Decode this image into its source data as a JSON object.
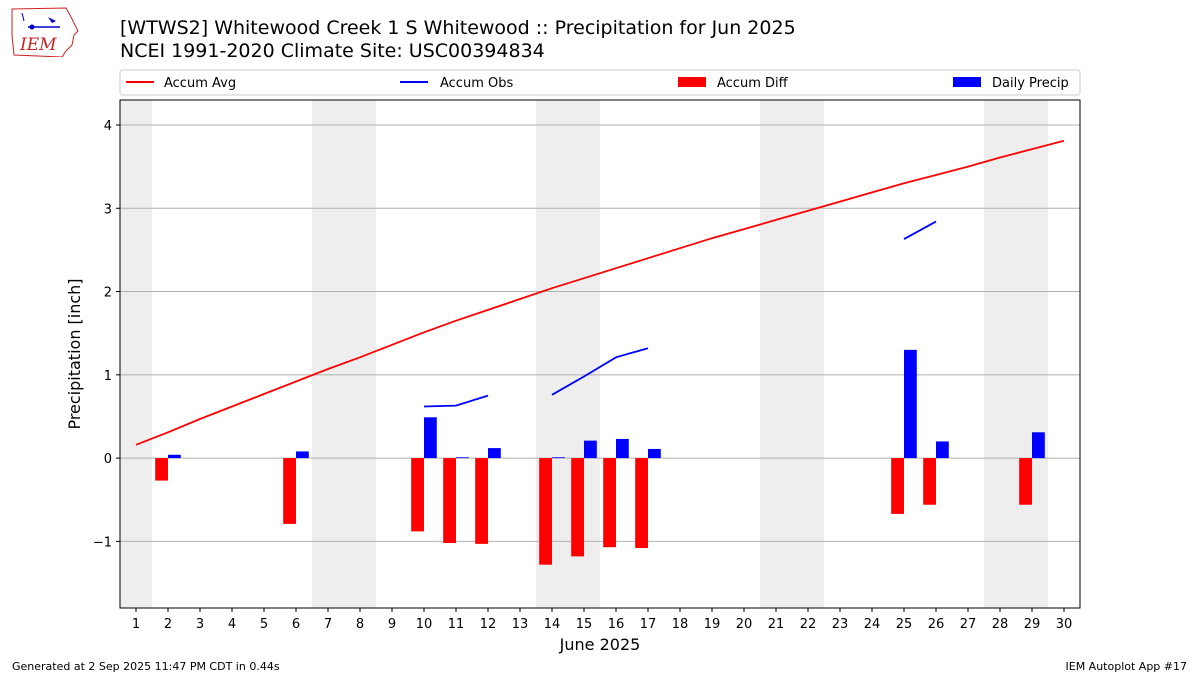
{
  "header": {
    "title_line1": "[WTWS2] Whitewood Creek 1 S Whitewood :: Precipitation for Jun 2025",
    "title_line2": "NCEI 1991-2020 Climate Site: USC00394834"
  },
  "logo": {
    "text": "IEM",
    "color": "#cc2222",
    "icon": "iem-iowa-logo"
  },
  "footer": {
    "left": "Generated at 2 Sep 2025 11:47 PM CDT in 0.44s",
    "right": "IEM Autoplot App #17"
  },
  "chart_data": {
    "type": "bar",
    "xlabel": "June 2025",
    "ylabel": "Precipitation [inch]",
    "x_ticks": [
      1,
      2,
      3,
      4,
      5,
      6,
      7,
      8,
      9,
      10,
      11,
      12,
      13,
      14,
      15,
      16,
      17,
      18,
      19,
      20,
      21,
      22,
      23,
      24,
      25,
      26,
      27,
      28,
      29,
      30
    ],
    "xlim": [
      0.5,
      30.5
    ],
    "ylim": [
      -1.8,
      4.3
    ],
    "y_ticks": [
      -1,
      0,
      1,
      2,
      3,
      4
    ],
    "y_tick_labels": [
      "−1",
      "0",
      "1",
      "2",
      "3",
      "4"
    ],
    "grid": "horizontal",
    "weekend_days": [
      1,
      7,
      8,
      14,
      15,
      21,
      22,
      28,
      29
    ],
    "weekend_color": "#eeeeee",
    "legend": [
      {
        "label": "Accum Avg",
        "type": "line",
        "color": "#ff0000"
      },
      {
        "label": "Accum Obs",
        "type": "line",
        "color": "#0000ff"
      },
      {
        "label": "Accum Diff",
        "type": "bar",
        "color": "#ff0000"
      },
      {
        "label": "Daily Precip",
        "type": "bar",
        "color": "#0000ff"
      }
    ],
    "legend_position": "top",
    "series": [
      {
        "name": "Accum Avg",
        "type": "line",
        "color": "#ff0000",
        "x": [
          1,
          2,
          3,
          4,
          5,
          6,
          7,
          8,
          9,
          10,
          11,
          12,
          13,
          14,
          15,
          16,
          17,
          18,
          19,
          20,
          21,
          22,
          23,
          24,
          25,
          26,
          27,
          28,
          29,
          30
        ],
        "values": [
          0.16,
          0.31,
          0.47,
          0.62,
          0.77,
          0.92,
          1.07,
          1.21,
          1.36,
          1.51,
          1.65,
          1.78,
          1.91,
          2.04,
          2.16,
          2.28,
          2.4,
          2.52,
          2.64,
          2.75,
          2.86,
          2.97,
          3.08,
          3.19,
          3.3,
          3.4,
          3.5,
          3.61,
          3.71,
          3.81
        ]
      },
      {
        "name": "Accum Obs",
        "type": "line",
        "color": "#0000ff",
        "x": [
          1,
          2,
          3,
          4,
          5,
          6,
          7,
          8,
          9,
          10,
          11,
          12,
          13,
          14,
          15,
          16,
          17,
          18,
          19,
          20,
          21,
          22,
          23,
          24,
          25,
          26,
          27,
          28,
          29,
          30
        ],
        "values": [
          null,
          null,
          null,
          null,
          null,
          null,
          null,
          null,
          null,
          0.62,
          0.63,
          0.75,
          null,
          0.76,
          0.98,
          1.21,
          1.32,
          null,
          null,
          null,
          null,
          null,
          null,
          null,
          2.63,
          2.84,
          null,
          null,
          null,
          null
        ]
      },
      {
        "name": "Accum Diff",
        "type": "bar",
        "color": "#ff0000",
        "x": [
          2,
          6,
          10,
          11,
          12,
          14,
          15,
          16,
          17,
          25,
          26,
          29
        ],
        "values": [
          -0.27,
          -0.79,
          -0.88,
          -1.02,
          -1.03,
          -1.28,
          -1.18,
          -1.07,
          -1.08,
          -0.67,
          -0.56,
          -0.56
        ]
      },
      {
        "name": "Daily Precip",
        "type": "bar",
        "color": "#0000ff",
        "x": [
          2,
          6,
          10,
          11,
          12,
          14,
          15,
          16,
          17,
          25,
          26,
          29
        ],
        "values": [
          0.04,
          0.08,
          0.49,
          0.01,
          0.12,
          0.01,
          0.21,
          0.23,
          0.11,
          1.3,
          0.2,
          0.31
        ]
      }
    ]
  }
}
